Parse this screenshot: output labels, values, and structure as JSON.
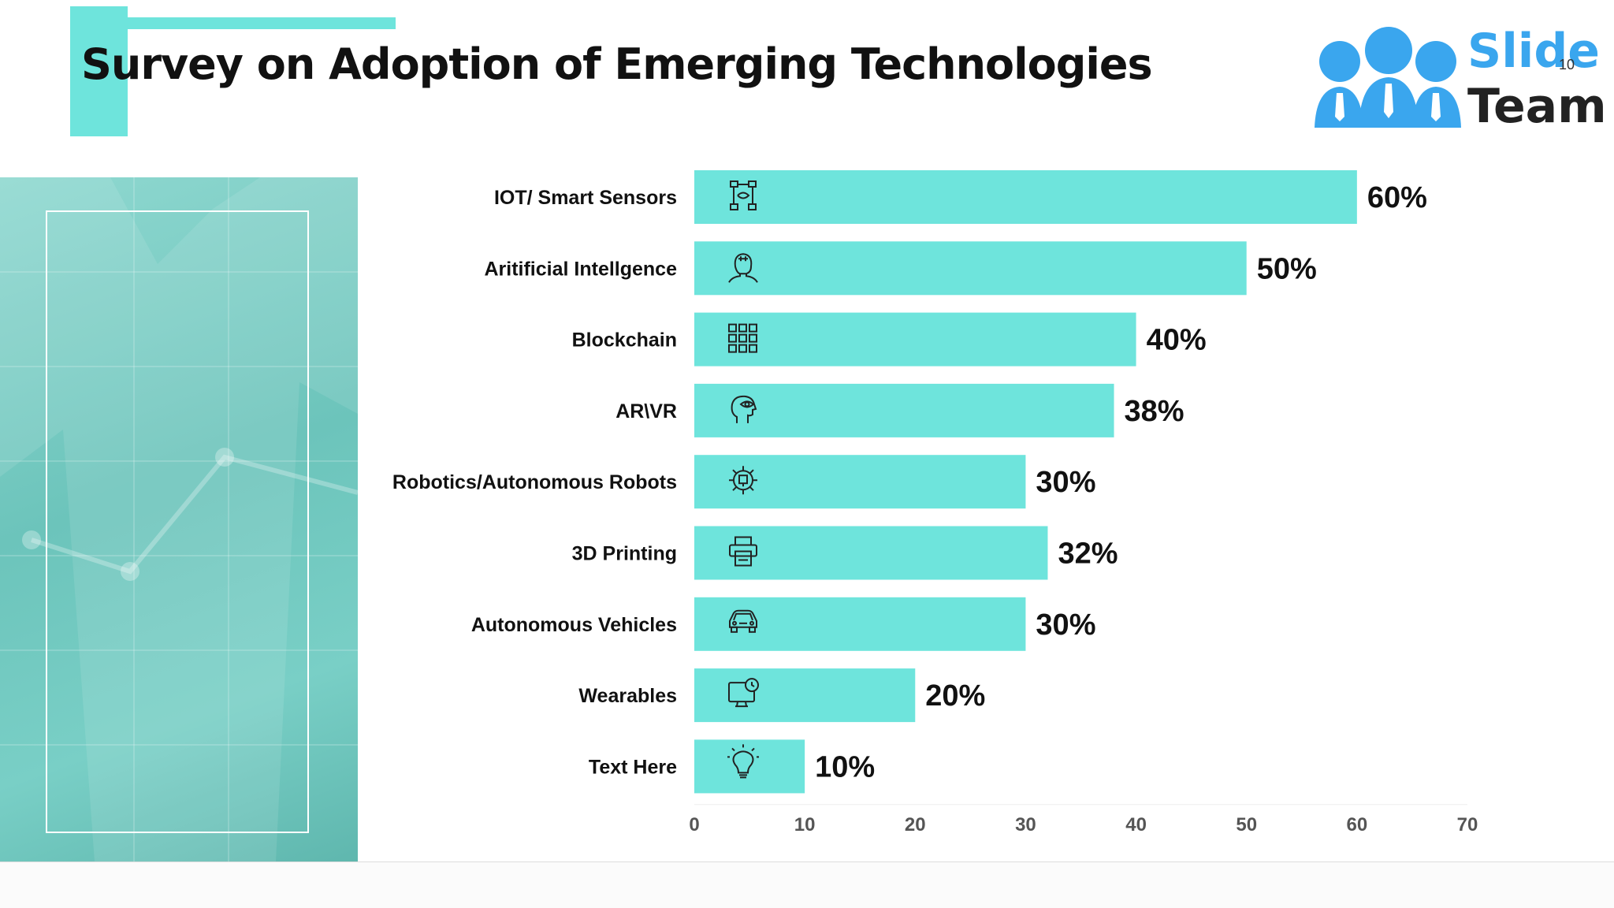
{
  "slide": {
    "title": "Survey on Adoption of Emerging Technologies",
    "slide_number": "10"
  },
  "logo": {
    "word1": "Slide",
    "word2": "Team",
    "colors": {
      "people": "#3aa6ee",
      "word1": "#3aa6ee",
      "word2": "#222222"
    }
  },
  "colors": {
    "accent": "#6ee4dc",
    "bar": "#6ee4dc",
    "text": "#111111",
    "axis_text": "#555555",
    "photo_tint": "#6cc4bb"
  },
  "chart_data": {
    "type": "bar",
    "orientation": "horizontal",
    "categories": [
      "IOT/ Smart Sensors",
      "Aritificial Intellgence",
      "Blockchain",
      "AR\\VR",
      "Robotics/Autonomous Robots",
      "3D Printing",
      "Autonomous Vehicles",
      "Wearables",
      "Text Here"
    ],
    "values": [
      60,
      50,
      40,
      38,
      30,
      32,
      30,
      20,
      10
    ],
    "value_labels": [
      "60%",
      "50%",
      "40%",
      "38%",
      "30%",
      "32%",
      "30%",
      "20%",
      "10%"
    ],
    "icons": [
      "network-sensors-icon",
      "ai-head-icon",
      "blockchain-grid-icon",
      "vr-head-eye-icon",
      "robot-gear-icon",
      "printer-icon",
      "car-icon",
      "monitor-clock-icon",
      "lightbulb-icon"
    ],
    "x_ticks": [
      0,
      10,
      20,
      30,
      40,
      50,
      60,
      70
    ],
    "xlim": [
      0,
      70
    ],
    "grid": false,
    "legend": "none",
    "title": "",
    "xlabel": "",
    "ylabel": ""
  }
}
